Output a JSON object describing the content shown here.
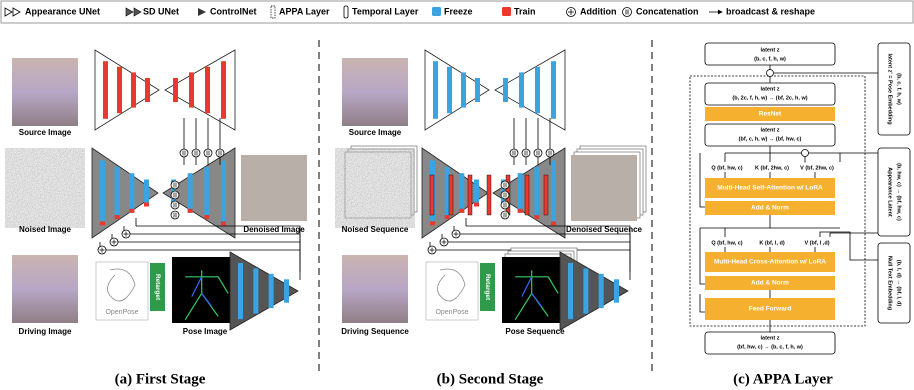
{
  "legend": [
    "Appearance UNet",
    "SD UNet",
    "ControlNet",
    "APPA Layer",
    "Temporal Layer",
    "Freeze",
    "Train",
    "Addition",
    "Concatenation",
    "broadcast & reshape"
  ],
  "panel_a": {
    "source": "Source Image",
    "noised": "Noised Image",
    "denoised": "Denoised Image",
    "driving": "Driving Image",
    "pose": "Pose Image",
    "openpose": "OpenPose",
    "retarget": "Retarget",
    "caption": "(a) First Stage"
  },
  "panel_b": {
    "source": "Source Image",
    "noised": "Noised Sequence",
    "denoised": "Denoised Sequence",
    "driving": "Driving Sequence",
    "pose": "Pose Sequence",
    "openpose": "OpenPose",
    "retarget": "Retarget",
    "caption": "(b) Second Stage"
  },
  "panel_c": {
    "input": {
      "title": "latent z",
      "shape": "(b, c, f, h, w)"
    },
    "concat1": {
      "title": "latent z",
      "shape": "(b, 2c, f, h, w) → (bf, 2c, h, w)"
    },
    "resnet": "ResNet",
    "reshape": {
      "title": "latent z",
      "shape": "(bf, c, h, w) → (bf, hw, c)"
    },
    "self_qkv": [
      "Q (bf, hw, c)",
      "K (bf, 2hw, c)",
      "V (bf, 2hw, c)"
    ],
    "self_attn": "Multi-Head Self-Attention w/ LoRA",
    "add_norm1": "Add & Norm",
    "cross_qkv": [
      "Q (bf, hw, c)",
      "K (bf, l, d)",
      "V (bf, l ,d)"
    ],
    "cross_attn": "Multi-Head Cross-Attention w/ LoRA",
    "add_norm2": "Add & Norm",
    "ffn": "Feed Forward",
    "output": {
      "title": "latent z",
      "shape": "(bf, hw, c) → (b, c, f, h, w)"
    },
    "side": [
      {
        "title": "latent z' = Pose Embedding",
        "shape": "(b, c, f, h, w)"
      },
      {
        "title": "Appearance Latent",
        "shape": "(b, hw, c) → (bf, hw, c)"
      },
      {
        "title": "Null Text Embedding",
        "shape": "(b, l, d) → (bf, l, d)"
      }
    ],
    "caption": "(c) APPA Layer"
  }
}
